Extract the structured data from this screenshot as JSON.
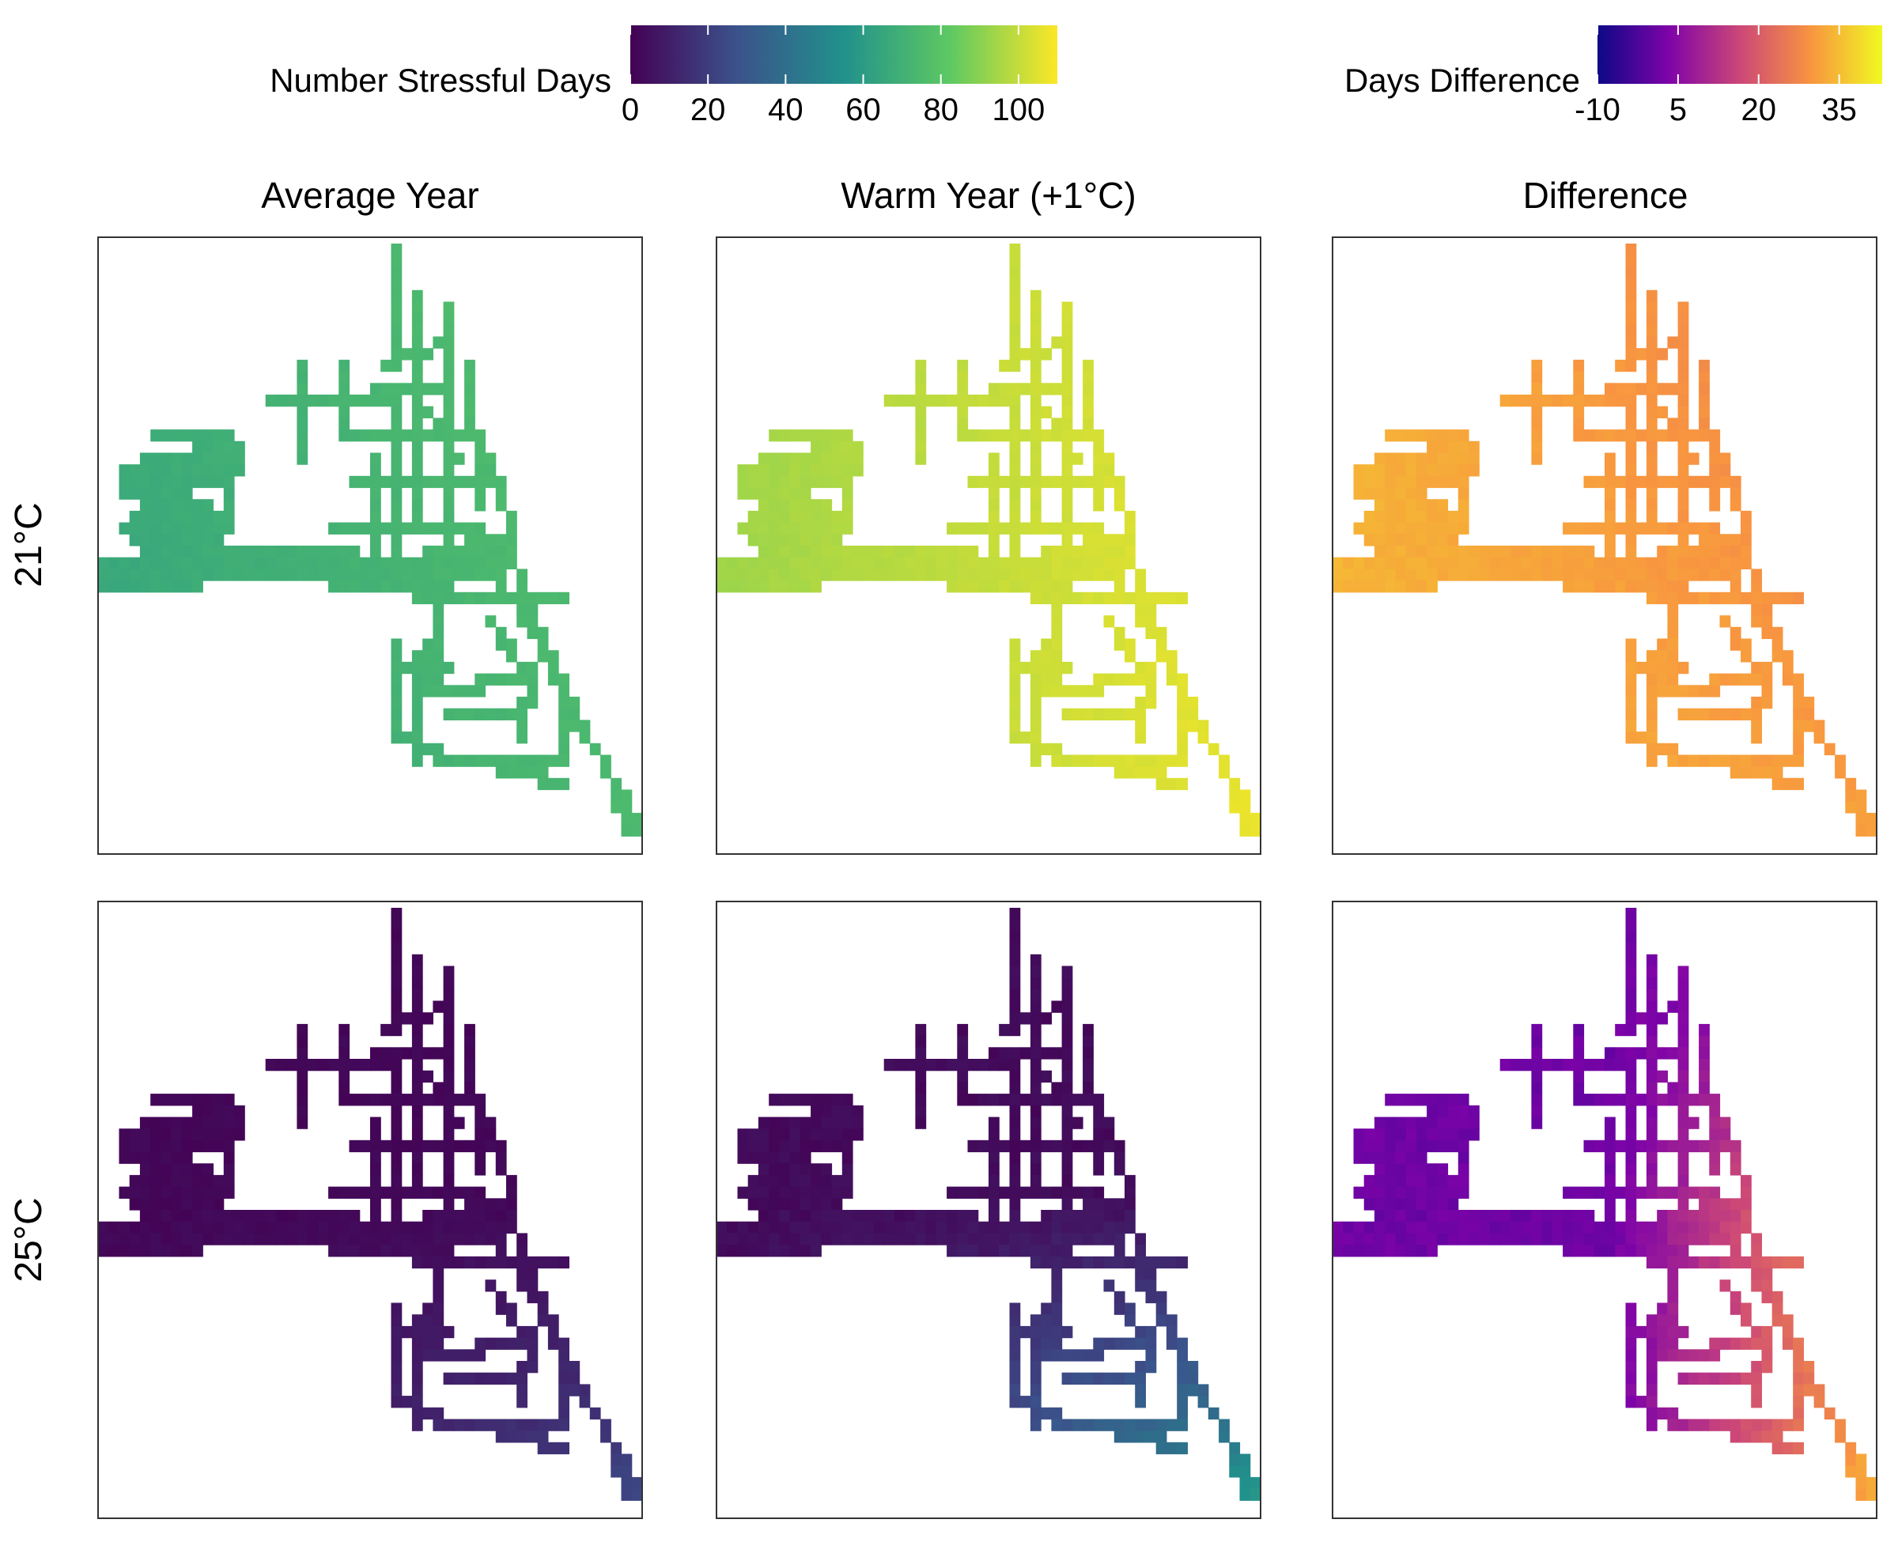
{
  "legends": {
    "stress": {
      "title": "Number Stressful Days",
      "ticks": [
        "0",
        "20",
        "40",
        "60",
        "80",
        "100"
      ],
      "tick_values": [
        0,
        20,
        40,
        60,
        80,
        100
      ],
      "range": [
        0,
        110
      ],
      "palette": "viridis",
      "colors": [
        "#440154",
        "#3b528b",
        "#21918c",
        "#5ec962",
        "#fde725"
      ]
    },
    "diff": {
      "title": "Days Difference",
      "ticks": [
        "-10",
        "5",
        "20",
        "35"
      ],
      "tick_values": [
        -10,
        5,
        20,
        35
      ],
      "range": [
        -10,
        43
      ],
      "palette": "plasma",
      "colors": [
        "#0d0887",
        "#7e03a8",
        "#cc4778",
        "#f89540",
        "#f0f921"
      ]
    }
  },
  "columns": [
    "Average Year",
    "Warm Year (+1°C)",
    "Difference"
  ],
  "rows": [
    "21°C",
    "25°C"
  ],
  "chart_data": {
    "type": "heatmap",
    "panels": [
      {
        "row": "21°C",
        "column": "Average Year",
        "scale": "stress",
        "value_range": [
          55,
          85
        ]
      },
      {
        "row": "21°C",
        "column": "Warm Year (+1°C)",
        "scale": "stress",
        "value_range": [
          80,
          110
        ]
      },
      {
        "row": "21°C",
        "column": "Difference",
        "scale": "diff",
        "value_range": [
          15,
          40
        ]
      },
      {
        "row": "25°C",
        "column": "Average Year",
        "scale": "stress",
        "value_range": [
          0,
          40
        ]
      },
      {
        "row": "25°C",
        "column": "Warm Year (+1°C)",
        "scale": "stress",
        "value_range": [
          0,
          65
        ]
      },
      {
        "row": "25°C",
        "column": "Difference",
        "scale": "diff",
        "value_range": [
          -5,
          38
        ]
      }
    ]
  }
}
